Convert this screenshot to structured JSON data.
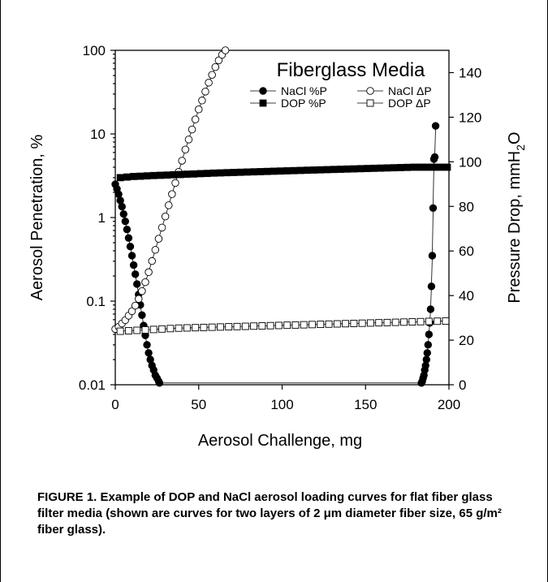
{
  "chart_data": {
    "type": "scatter",
    "title": "Fiberglass Media",
    "xlabel": "Aerosol Challenge, mg",
    "ylabel_left": "Aerosol Penetration, %",
    "ylabel_right": "Pressure Drop, mmH2O",
    "ylabel_right_parts": {
      "main": "Pressure Drop, mmH",
      "sub": "2",
      "tail": "O"
    },
    "x_range": [
      0,
      200
    ],
    "x_ticks": [
      "0",
      "50",
      "100",
      "150",
      "200"
    ],
    "y_left_scale": "log",
    "y_left_range": [
      0.01,
      100
    ],
    "y_left_ticks": [
      "0.01",
      "0.1",
      "1",
      "10",
      "100"
    ],
    "y_right_range": [
      0,
      150
    ],
    "y_right_ticks": [
      "0",
      "20",
      "40",
      "60",
      "80",
      "100",
      "120",
      "140"
    ],
    "grid": false,
    "legend_position": "top-right",
    "series": [
      {
        "name": "NaCl %P",
        "axis": "left",
        "marker": "filled-circle",
        "x": [
          0,
          1,
          2,
          3,
          4,
          5,
          6,
          7,
          8,
          9,
          10,
          11,
          12,
          13,
          14,
          15,
          16,
          17,
          18,
          19,
          20,
          21,
          22,
          23,
          24,
          25,
          26,
          26.5,
          183.5,
          184,
          184.5,
          185,
          185.5,
          186,
          186.5,
          187,
          187.5,
          188,
          188.5,
          189,
          189.5,
          190,
          190.5,
          191,
          191.5,
          192
        ],
        "y": [
          2.5,
          2.2,
          1.9,
          1.6,
          1.35,
          1.1,
          0.9,
          0.72,
          0.57,
          0.45,
          0.35,
          0.27,
          0.21,
          0.16,
          0.12,
          0.09,
          0.068,
          0.051,
          0.039,
          0.03,
          0.024,
          0.02,
          0.017,
          0.015,
          0.013,
          0.012,
          0.011,
          0.0105,
          0.0105,
          0.011,
          0.012,
          0.013,
          0.015,
          0.017,
          0.02,
          0.024,
          0.03,
          0.04,
          0.055,
          0.08,
          0.15,
          0.35,
          1.3,
          5.0,
          5.3,
          12.5
        ]
      },
      {
        "name": "NaCl ΔP",
        "axis": "right",
        "marker": "open-circle",
        "x": [
          0,
          2,
          4,
          6,
          8,
          10,
          12,
          14,
          16,
          18,
          20,
          22,
          24,
          26,
          28,
          30,
          32,
          34,
          36,
          38,
          40,
          42,
          44,
          46,
          48,
          50,
          52,
          54,
          56,
          58,
          60,
          62,
          64,
          66
        ],
        "y": [
          25,
          26,
          27.5,
          29,
          31,
          33,
          35.5,
          38.5,
          42,
          46,
          50.5,
          55.5,
          60.5,
          65.5,
          70.5,
          75.5,
          80.5,
          85.5,
          90.5,
          95.5,
          100.5,
          105.5,
          110,
          114.5,
          119,
          123.5,
          127.5,
          131.5,
          135.5,
          139,
          142.5,
          145.5,
          148,
          150
        ]
      },
      {
        "name": "DOP %P",
        "axis": "left",
        "marker": "filled-square",
        "x": [
          3,
          7,
          11,
          15,
          19,
          23,
          27,
          31,
          35,
          39,
          43,
          47,
          51,
          55,
          59,
          63,
          67,
          71,
          75,
          79,
          83,
          87,
          91,
          95,
          99,
          103,
          107,
          111,
          115,
          119,
          123,
          127,
          131,
          135,
          139,
          143,
          147,
          151,
          155,
          159,
          163,
          167,
          171,
          175,
          179,
          183,
          187,
          191,
          195,
          199
        ],
        "y": [
          3.0,
          3.05,
          3.1,
          3.12,
          3.15,
          3.18,
          3.2,
          3.22,
          3.25,
          3.27,
          3.3,
          3.32,
          3.35,
          3.37,
          3.4,
          3.42,
          3.44,
          3.46,
          3.48,
          3.5,
          3.52,
          3.54,
          3.56,
          3.58,
          3.6,
          3.62,
          3.64,
          3.66,
          3.68,
          3.7,
          3.72,
          3.74,
          3.76,
          3.78,
          3.8,
          3.82,
          3.84,
          3.86,
          3.88,
          3.9,
          3.92,
          3.94,
          3.96,
          3.98,
          4.0,
          4.0,
          4.0,
          4.0,
          4.0,
          4.0
        ]
      },
      {
        "name": "DOP ΔP",
        "axis": "right",
        "marker": "open-square",
        "x": [
          3,
          8,
          13,
          18,
          23,
          28,
          33,
          38,
          43,
          48,
          53,
          58,
          63,
          68,
          73,
          78,
          83,
          88,
          93,
          98,
          103,
          108,
          113,
          118,
          123,
          128,
          133,
          138,
          143,
          148,
          153,
          158,
          163,
          168,
          173,
          178,
          183,
          188,
          193,
          198
        ],
        "y": [
          24,
          24.2,
          24.4,
          24.6,
          24.8,
          25,
          25.2,
          25.4,
          25.5,
          25.6,
          25.7,
          25.8,
          25.9,
          26,
          26.1,
          26.2,
          26.3,
          26.4,
          26.5,
          26.6,
          26.7,
          26.8,
          26.9,
          27,
          27.1,
          27.2,
          27.3,
          27.4,
          27.5,
          27.6,
          27.7,
          27.8,
          27.9,
          28,
          28.1,
          28.2,
          28.3,
          28.4,
          28.5,
          28.6
        ]
      }
    ]
  },
  "caption": "FIGURE 1. Example of DOP and NaCl aerosol loading curves for flat fiber glass filter media (shown are curves for two layers of 2 μm diameter fiber size, 65 g/m² fiber glass)."
}
